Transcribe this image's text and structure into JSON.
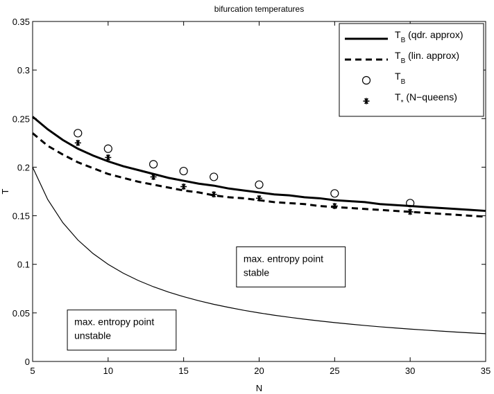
{
  "chart_data": {
    "type": "line",
    "title": "bifurcation temperatures",
    "xlabel": "N",
    "ylabel": "T",
    "xlim": [
      5,
      35
    ],
    "ylim": [
      0,
      0.35
    ],
    "xticks": [
      5,
      10,
      15,
      20,
      25,
      30,
      35
    ],
    "yticks": [
      0,
      0.05,
      0.1,
      0.15,
      0.2,
      0.25,
      0.3,
      0.35
    ],
    "grid": false,
    "legend_position": "top-right",
    "series": [
      {
        "name": "T_B (qdr. approx)",
        "legend_main": "T",
        "legend_sub": "B",
        "legend_suffix": " (qdr. approx)",
        "style": "thick-solid",
        "color": "#000000",
        "x": [
          5,
          6,
          7,
          8,
          9,
          10,
          11,
          12,
          13,
          14,
          15,
          16,
          17,
          18,
          19,
          20,
          21,
          22,
          23,
          24,
          25,
          26,
          27,
          28,
          29,
          30,
          31,
          32,
          33,
          34,
          35
        ],
        "y": [
          0.252,
          0.239,
          0.228,
          0.219,
          0.212,
          0.206,
          0.201,
          0.197,
          0.193,
          0.189,
          0.186,
          0.183,
          0.181,
          0.178,
          0.176,
          0.174,
          0.172,
          0.171,
          0.169,
          0.168,
          0.166,
          0.165,
          0.164,
          0.162,
          0.161,
          0.16,
          0.159,
          0.158,
          0.157,
          0.156,
          0.155
        ]
      },
      {
        "name": "T_B (lin. approx)",
        "legend_main": "T",
        "legend_sub": "B",
        "legend_suffix": " (lin. approx)",
        "style": "thick-dashed",
        "color": "#000000",
        "x": [
          5,
          6,
          7,
          8,
          9,
          10,
          11,
          12,
          13,
          14,
          15,
          16,
          17,
          18,
          19,
          20,
          21,
          22,
          23,
          24,
          25,
          26,
          27,
          28,
          29,
          30,
          31,
          32,
          33,
          34,
          35
        ],
        "y": [
          0.235,
          0.222,
          0.213,
          0.205,
          0.199,
          0.193,
          0.189,
          0.185,
          0.182,
          0.179,
          0.176,
          0.174,
          0.171,
          0.169,
          0.168,
          0.166,
          0.164,
          0.163,
          0.162,
          0.16,
          0.159,
          0.158,
          0.157,
          0.156,
          0.155,
          0.154,
          0.153,
          0.152,
          0.151,
          0.15,
          0.149
        ]
      },
      {
        "name": "T_B",
        "legend_main": "T",
        "legend_sub": "B",
        "legend_suffix": "",
        "style": "circle-marker",
        "color": "#000000",
        "x": [
          8,
          10,
          13,
          15,
          17,
          20,
          25,
          30
        ],
        "y": [
          0.235,
          0.219,
          0.203,
          0.196,
          0.19,
          0.182,
          0.173,
          0.163
        ]
      },
      {
        "name": "T_* (N-queens)",
        "legend_main": "T",
        "legend_sub": "*",
        "legend_suffix": " (N−queens)",
        "style": "star-marker",
        "color": "#000000",
        "x": [
          8,
          10,
          13,
          15,
          17,
          20,
          25,
          30
        ],
        "y": [
          0.225,
          0.21,
          0.19,
          0.18,
          0.172,
          0.168,
          0.16,
          0.154
        ]
      },
      {
        "style": "thin-solid",
        "color": "#000000",
        "x": [
          5,
          6,
          7,
          8,
          9,
          10,
          11,
          12,
          13,
          14,
          15,
          16,
          17,
          18,
          19,
          20,
          21,
          22,
          23,
          24,
          25,
          26,
          27,
          28,
          29,
          30,
          31,
          32,
          33,
          34,
          35
        ],
        "y": [
          0.2,
          0.1667,
          0.1429,
          0.125,
          0.1111,
          0.1,
          0.0909,
          0.0833,
          0.0769,
          0.0714,
          0.0667,
          0.0625,
          0.0588,
          0.0556,
          0.0526,
          0.05,
          0.0476,
          0.0455,
          0.0435,
          0.0417,
          0.04,
          0.0385,
          0.037,
          0.0357,
          0.0345,
          0.0333,
          0.0323,
          0.0313,
          0.0303,
          0.0294,
          0.0286
        ]
      }
    ],
    "annotations": [
      {
        "lines": [
          "max. entropy point",
          "stable"
        ],
        "x": 18.5,
        "y": 0.118
      },
      {
        "lines": [
          "max. entropy point",
          "unstable"
        ],
        "x": 7.3,
        "y": 0.053
      }
    ]
  }
}
